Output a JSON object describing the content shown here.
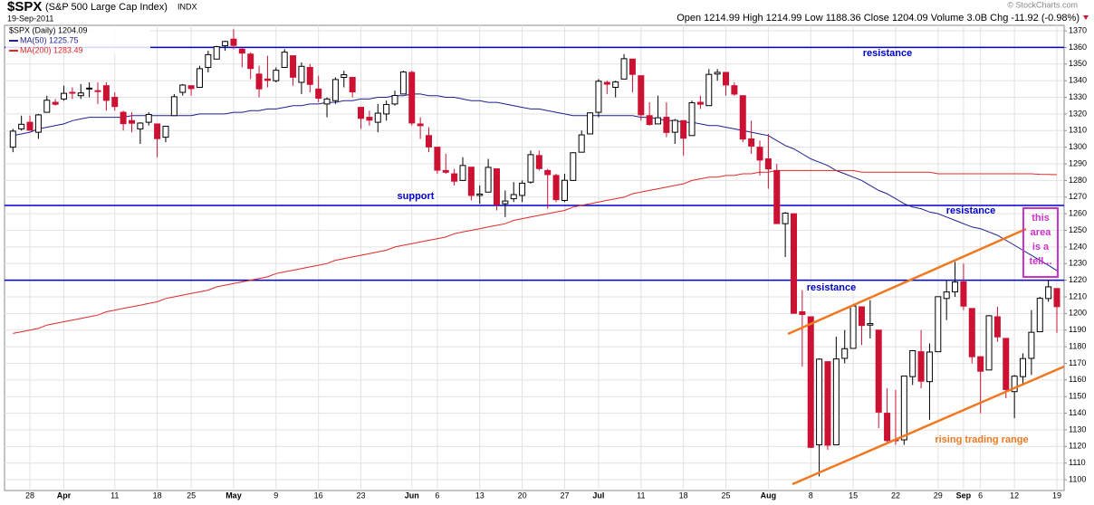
{
  "chart_data": {
    "type": "candlestick",
    "symbol": "$SPX",
    "name": "(S&P 500 Large Cap Index)",
    "exchange": "INDX",
    "date": "19-Sep-2011",
    "quote": "Open 1214.99 High 1214.99 Low 1188.36 Close 1204.09 Volume 3.0B Chg -11.92 (-0.98%)",
    "credit": "© StockCharts.com",
    "price_legend": "$SPX (Daily) 1204.09",
    "up_color": "#000000",
    "down_color": "#cc1133",
    "categories": [
      null,
      null,
      "28",
      null,
      null,
      null,
      "Apr",
      null,
      null,
      null,
      null,
      null,
      "11",
      null,
      null,
      null,
      null,
      "18",
      null,
      null,
      null,
      "25",
      null,
      null,
      null,
      null,
      "May",
      null,
      null,
      null,
      null,
      "9",
      null,
      null,
      null,
      null,
      "16",
      null,
      null,
      null,
      null,
      "23",
      null,
      null,
      null,
      null,
      null,
      "Jun",
      null,
      null,
      "6",
      null,
      null,
      null,
      null,
      "13",
      null,
      null,
      null,
      null,
      "20",
      null,
      null,
      null,
      null,
      "27",
      null,
      null,
      null,
      "Jul",
      null,
      null,
      null,
      null,
      "11",
      null,
      null,
      null,
      null,
      "18",
      null,
      null,
      null,
      null,
      "25",
      null,
      null,
      null,
      null,
      "Aug",
      null,
      null,
      null,
      null,
      "8",
      null,
      null,
      null,
      null,
      "15",
      null,
      null,
      null,
      null,
      "22",
      null,
      null,
      null,
      null,
      "29",
      null,
      null,
      "Sep",
      null,
      "6",
      null,
      null,
      null,
      "12",
      null,
      null,
      null,
      null,
      "19"
    ],
    "ohlc": [
      [
        1300,
        1311,
        1297,
        1309.66
      ],
      [
        1311,
        1319,
        1310,
        1313.8
      ],
      [
        1315,
        1319,
        1310,
        1310.19
      ],
      [
        1309,
        1320,
        1305,
        1319.44
      ],
      [
        1321,
        1331,
        1321,
        1328.26
      ],
      [
        1327,
        1329,
        1325,
        1325.83
      ],
      [
        1329,
        1337,
        1328,
        1332.41
      ],
      [
        1333,
        1336,
        1329,
        1332.87
      ],
      [
        1331,
        1338,
        1329,
        1332.63
      ],
      [
        1335,
        1339,
        1330,
        1335.54
      ],
      [
        1334,
        1339,
        1326,
        1333.51
      ],
      [
        1337,
        1339,
        1322,
        1328.17
      ],
      [
        1330,
        1333,
        1322,
        1324.46
      ],
      [
        1321,
        1322,
        1310,
        1314.16
      ],
      [
        1316,
        1321,
        1309,
        1314.41
      ],
      [
        1311,
        1315,
        1302,
        1314.52
      ],
      [
        1315,
        1321,
        1313,
        1319.68
      ],
      [
        1314,
        1314,
        1294,
        1305.14
      ],
      [
        1306,
        1312,
        1303,
        1312.62
      ],
      [
        1319,
        1332,
        1319,
        1330.36
      ],
      [
        1333,
        1338,
        1331,
        1337.38
      ],
      [
        1337,
        1337,
        1331,
        1335.25
      ],
      [
        1336,
        1349,
        1336,
        1347.24
      ],
      [
        1348,
        1358,
        1345,
        1355.66
      ],
      [
        1353,
        1361,
        1353,
        1360.48
      ],
      [
        1361,
        1364,
        1358,
        1363.61
      ],
      [
        1365,
        1371,
        1359,
        1361.22
      ],
      [
        1359,
        1360,
        1348,
        1356.62
      ],
      [
        1356,
        1357,
        1341,
        1347.32
      ],
      [
        1344,
        1349,
        1330,
        1335.1
      ],
      [
        1341,
        1355,
        1336,
        1340.2
      ],
      [
        1340,
        1348,
        1339,
        1346.29
      ],
      [
        1348,
        1359,
        1348,
        1357.16
      ],
      [
        1355,
        1355,
        1337,
        1342.08
      ],
      [
        1339,
        1351,
        1332,
        1348.65
      ],
      [
        1348,
        1350,
        1333,
        1337.77
      ],
      [
        1335,
        1343,
        1327,
        1329.47
      ],
      [
        1326,
        1330,
        1318,
        1328.98
      ],
      [
        1328,
        1342,
        1326,
        1340.68
      ],
      [
        1342,
        1346,
        1336,
        1343.6
      ],
      [
        1342,
        1342,
        1330,
        1333.27
      ],
      [
        1324,
        1324,
        1311,
        1317.37
      ],
      [
        1318,
        1322,
        1313,
        1316.28
      ],
      [
        1315,
        1326,
        1309,
        1320.47
      ],
      [
        1320,
        1328,
        1316,
        1325.69
      ],
      [
        1326,
        1334,
        1325,
        1331.1
      ],
      [
        1332,
        1346,
        1332,
        1345.2
      ],
      [
        1345,
        1346,
        1313,
        1314.55
      ],
      [
        1314,
        1318,
        1305,
        1312.94
      ],
      [
        1307,
        1312,
        1297,
        1300.16
      ],
      [
        1300,
        1300,
        1284,
        1286.17
      ],
      [
        1286,
        1296,
        1284,
        1284.94
      ],
      [
        1284,
        1287,
        1277,
        1279.56
      ],
      [
        1280,
        1294,
        1280,
        1289
      ],
      [
        1288,
        1288,
        1268,
        1270.98
      ],
      [
        1271,
        1277,
        1266,
        1271.83
      ],
      [
        1273,
        1293,
        1273,
        1287.87
      ],
      [
        1287,
        1287,
        1262,
        1265.42
      ],
      [
        1266,
        1274,
        1258,
        1267.64
      ],
      [
        1269,
        1279,
        1267,
        1271.5
      ],
      [
        1271,
        1280,
        1267,
        1278.36
      ],
      [
        1279,
        1298,
        1278,
        1295.52
      ],
      [
        1295,
        1298,
        1286,
        1287.14
      ],
      [
        1286,
        1287,
        1263,
        1283.5
      ],
      [
        1283,
        1284,
        1267,
        1268.45
      ],
      [
        1268,
        1284,
        1267,
        1280.1
      ],
      [
        1280,
        1297,
        1280,
        1296.67
      ],
      [
        1297,
        1310,
        1297,
        1307.41
      ],
      [
        1308,
        1321,
        1308,
        1320.64
      ],
      [
        1321,
        1341,
        1318,
        1339.67
      ],
      [
        1339,
        1340,
        1332,
        1337.88
      ],
      [
        1336,
        1340,
        1330,
        1339.22
      ],
      [
        1341,
        1356,
        1341,
        1353.22
      ],
      [
        1353,
        1353,
        1333,
        1343.8
      ],
      [
        1343,
        1343,
        1316,
        1319.49
      ],
      [
        1319,
        1327,
        1313,
        1313.64
      ],
      [
        1314,
        1331,
        1314,
        1317.72
      ],
      [
        1318,
        1327,
        1306,
        1308.87
      ],
      [
        1309,
        1317,
        1302,
        1316.14
      ],
      [
        1316,
        1316,
        1295,
        1305.44
      ],
      [
        1307,
        1328,
        1307,
        1326.73
      ],
      [
        1327,
        1331,
        1323,
        1325.84
      ],
      [
        1325,
        1347,
        1325,
        1343.8
      ],
      [
        1344,
        1347,
        1340,
        1345.02
      ],
      [
        1345,
        1345,
        1331,
        1337.43
      ],
      [
        1337,
        1339,
        1331,
        1331.94
      ],
      [
        1331,
        1331,
        1303,
        1304.89
      ],
      [
        1305,
        1316,
        1296,
        1300.67
      ],
      [
        1300,
        1304,
        1283,
        1292.28
      ],
      [
        1293,
        1308,
        1275,
        1286.94
      ],
      [
        1286,
        1290,
        1254,
        1254.05
      ],
      [
        1254,
        1261,
        1234,
        1260.34
      ],
      [
        1260,
        1260,
        1200,
        1200.07
      ],
      [
        1201,
        1214,
        1168,
        1199.38
      ],
      [
        1198,
        1198,
        1119,
        1119.46
      ],
      [
        1121,
        1173,
        1102,
        1172.53
      ],
      [
        1171,
        1171,
        1118,
        1120.76
      ],
      [
        1121,
        1186,
        1121,
        1172.64
      ],
      [
        1173,
        1190,
        1170,
        1178.81
      ],
      [
        1179,
        1205,
        1179,
        1204.49
      ],
      [
        1204,
        1204,
        1181,
        1192.76
      ],
      [
        1193,
        1208,
        1185,
        1193.89
      ],
      [
        1190,
        1190,
        1131,
        1140.65
      ],
      [
        1140,
        1155,
        1122,
        1123.53
      ],
      [
        1124,
        1154,
        1121,
        1123.82
      ],
      [
        1124,
        1162,
        1121,
        1162.35
      ],
      [
        1162,
        1178,
        1157,
        1177.6
      ],
      [
        1177,
        1190,
        1155,
        1159.27
      ],
      [
        1159,
        1182,
        1136,
        1176.8
      ],
      [
        1177,
        1210,
        1177,
        1210.08
      ],
      [
        1209,
        1220,
        1196,
        1212.92
      ],
      [
        1213,
        1231,
        1210,
        1218.89
      ],
      [
        1219,
        1230,
        1202,
        1204.42
      ],
      [
        1203,
        1203,
        1170,
        1173.97
      ],
      [
        1174,
        1174,
        1140,
        1165.24
      ],
      [
        1166,
        1199,
        1166,
        1198.62
      ],
      [
        1198,
        1204,
        1183,
        1185.9
      ],
      [
        1185,
        1185,
        1149,
        1154.23
      ],
      [
        1153,
        1163,
        1137,
        1162.27
      ],
      [
        1162,
        1176,
        1158,
        1172.87
      ],
      [
        1173,
        1202,
        1163,
        1188.68
      ],
      [
        1189,
        1210,
        1189,
        1209.11
      ],
      [
        1209,
        1220,
        1207,
        1216.01
      ],
      [
        1214.99,
        1214.99,
        1188.36,
        1204.09
      ]
    ],
    "series": [
      {
        "name": "MA(50) 1225.75",
        "color": "#1f1f8f",
        "values": [
          1307,
          1308,
          1309,
          1311,
          1312,
          1313,
          1314,
          1316,
          1317,
          1318,
          1318,
          1318,
          1318,
          1318,
          1319,
          1319,
          1319,
          1319,
          1319,
          1319,
          1319,
          1319,
          1320,
          1320,
          1320,
          1320,
          1321,
          1321,
          1322,
          1322,
          1323,
          1323,
          1324,
          1325,
          1325,
          1326,
          1326,
          1327,
          1327,
          1328,
          1328,
          1329,
          1329,
          1330,
          1330,
          1331,
          1331,
          1332,
          1332,
          1331,
          1331,
          1330,
          1330,
          1329,
          1328,
          1328,
          1327,
          1327,
          1326,
          1325,
          1324,
          1323,
          1323,
          1322,
          1321,
          1320,
          1319,
          1319,
          1319,
          1319,
          1319,
          1319,
          1319,
          1319,
          1318,
          1318,
          1317,
          1316,
          1316,
          1315,
          1315,
          1314,
          1313,
          1313,
          1312,
          1311,
          1310,
          1309,
          1308,
          1307,
          1304,
          1301,
          1299,
          1296,
          1293,
          1291,
          1289,
          1286,
          1284,
          1282,
          1280,
          1277,
          1274,
          1272,
          1269,
          1266,
          1264,
          1263,
          1261,
          1260,
          1258,
          1256,
          1254,
          1252,
          1251,
          1249,
          1247,
          1244,
          1241,
          1238,
          1235,
          1232,
          1229,
          1225.75
        ]
      },
      {
        "name": "MA(200) 1283.49",
        "color": "#e02828",
        "values": [
          1188,
          1189,
          1190,
          1191,
          1193,
          1194,
          1195,
          1196,
          1197,
          1198,
          1199,
          1201,
          1202,
          1203,
          1204,
          1205,
          1206,
          1207,
          1209,
          1210,
          1211,
          1212,
          1213,
          1214,
          1216,
          1217,
          1218,
          1219,
          1220,
          1221,
          1222,
          1224,
          1225,
          1226,
          1227,
          1228,
          1229,
          1230,
          1232,
          1233,
          1234,
          1235,
          1236,
          1237,
          1238,
          1240,
          1241,
          1242,
          1243,
          1244,
          1245,
          1246,
          1248,
          1249,
          1250,
          1251,
          1252,
          1253,
          1254,
          1256,
          1257,
          1258,
          1259,
          1260,
          1261,
          1262,
          1264,
          1265,
          1266,
          1267,
          1268,
          1269,
          1270,
          1272,
          1273,
          1274,
          1275,
          1276,
          1277,
          1278,
          1280,
          1281,
          1282,
          1282,
          1283,
          1283,
          1284,
          1284,
          1285,
          1285,
          1286,
          1286,
          1286,
          1286,
          1286,
          1286,
          1286,
          1286,
          1286,
          1286,
          1285,
          1285,
          1285,
          1285,
          1285,
          1285,
          1285,
          1285,
          1285,
          1284,
          1284,
          1284,
          1284,
          1284,
          1284,
          1284,
          1284,
          1284,
          1284,
          1284,
          1284,
          1283.7,
          1283.6,
          1283.49
        ]
      }
    ],
    "levels": [
      1360,
      1265,
      1220
    ],
    "level_color": "#0000cc",
    "annotations": [
      "resistance",
      "support",
      "resistance",
      "resistance",
      "rising trading range"
    ],
    "callout": [
      "this",
      "area",
      "is a",
      "tell..."
    ],
    "ylim": [
      1093.5,
      1373.3
    ],
    "yticks": [
      1100,
      1110,
      1120,
      1130,
      1140,
      1150,
      1160,
      1170,
      1180,
      1190,
      1200,
      1210,
      1220,
      1230,
      1240,
      1250,
      1260,
      1270,
      1280,
      1290,
      1300,
      1310,
      1320,
      1330,
      1340,
      1350,
      1360,
      1370
    ],
    "grid": true
  }
}
